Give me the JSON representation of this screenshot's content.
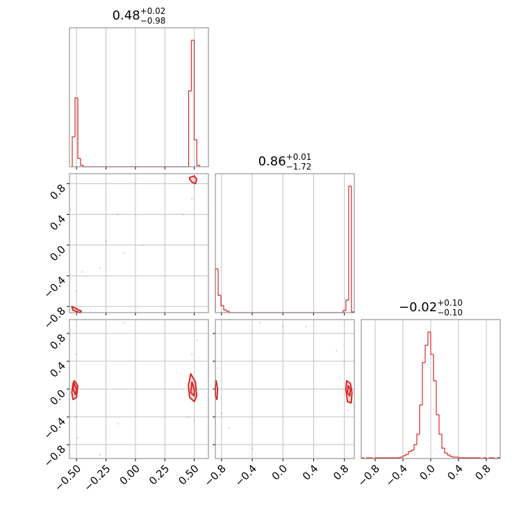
{
  "chart_data": [
    {
      "type": "histogram",
      "title": {
        "text": "0.48",
        "upper": "+0.02",
        "lower": "−0.98"
      },
      "bins": [
        -0.5365,
        -0.513,
        -0.489,
        -0.466,
        -0.442,
        0.452,
        0.475,
        0.499,
        0.522,
        0.546
      ],
      "counts": [
        43,
        99,
        12,
        2,
        0,
        109,
        182,
        39,
        2
      ],
      "xlim": [
        -0.56,
        0.62
      ],
      "ylim": [
        0,
        200
      ],
      "xticks": [
        -0.5,
        -0.25,
        0,
        0.25,
        0.5
      ],
      "xtick_labels": false,
      "grid": true,
      "color": "#d62728"
    },
    {
      "type": "contour",
      "contours": [
        {
          "x": [
            0.46,
            0.5,
            0.52,
            0.51,
            0.48,
            0.46
          ],
          "y": [
            0.88,
            0.9,
            0.86,
            0.8,
            0.82,
            0.86
          ]
        },
        {
          "x": [
            -0.54,
            -0.5,
            -0.46,
            -0.47,
            -0.53
          ],
          "y": [
            -0.8,
            -0.83,
            -0.86,
            -0.88,
            -0.85
          ]
        }
      ],
      "points": {
        "x": [
          -0.25,
          -0.3,
          -0.15,
          -0.1,
          0.05,
          -0.45,
          0.4,
          0.48,
          0.5,
          -0.5
        ],
        "y": [
          0.05,
          -0.3,
          0.4,
          -0.1,
          0.0,
          -0.35,
          0.4,
          0.6,
          0.75,
          -0.6
        ]
      },
      "xlim": [
        -0.56,
        0.62
      ],
      "ylim": [
        -0.88,
        0.93
      ],
      "xticks": [
        -0.5,
        -0.25,
        0,
        0.25,
        0.5
      ],
      "yticks": [
        0.8,
        0.4,
        {
          "value": 0,
          "label": "0.0"
        },
        {
          "value": -0.4,
          "label": "−0.4"
        },
        {
          "value": -0.8,
          "label": "−0.8"
        }
      ],
      "xtick_labels": false,
      "ytick_labels": true,
      "grid": true,
      "color": "#d62728"
    },
    {
      "type": "histogram",
      "title": {
        "text": "0.86",
        "upper": "+0.01",
        "lower": "−1.72"
      },
      "bins": [
        -0.88,
        -0.844,
        -0.808,
        -0.771,
        -0.735,
        -0.699,
        0.785,
        0.821,
        0.857,
        0.893,
        0.93
      ],
      "counts": [
        63,
        25,
        10,
        4,
        2,
        0,
        3,
        18,
        182,
        1
      ],
      "xlim": [
        -0.88,
        0.93
      ],
      "ylim": [
        0,
        200
      ],
      "xticks": [
        -0.8,
        -0.4,
        0,
        0.4,
        0.8
      ],
      "xtick_labels": false,
      "grid": true,
      "color": "#d62728"
    },
    {
      "type": "contour",
      "contours": [
        {
          "x": [
            -0.52,
            -0.49,
            -0.5,
            -0.53,
            -0.54,
            -0.53
          ],
          "y": [
            0.12,
            0.05,
            -0.12,
            -0.15,
            -0.05,
            0.08
          ]
        },
        {
          "x": [
            -0.52,
            -0.5,
            -0.51,
            -0.53
          ],
          "y": [
            0.08,
            0,
            -0.08,
            0
          ]
        },
        {
          "x": [
            0.47,
            0.51,
            0.52,
            0.5,
            0.46,
            0.45
          ],
          "y": [
            0.22,
            0.1,
            -0.1,
            -0.18,
            -0.12,
            0.05
          ]
        },
        {
          "x": [
            0.48,
            0.5,
            0.5,
            0.47
          ],
          "y": [
            0.1,
            0,
            -0.1,
            -0.05
          ]
        }
      ],
      "points": {
        "x": [
          -0.5,
          -0.51,
          -0.49,
          -0.3,
          -0.15,
          0.48,
          0.5,
          0.52,
          -0.1,
          0.45
        ],
        "y": [
          0.5,
          -0.4,
          -0.7,
          -0.95,
          -0.5,
          0.5,
          -0.45,
          0.7,
          0.95,
          -0.4
        ]
      },
      "xlim": [
        -0.56,
        0.62
      ],
      "ylim": [
        -1,
        1
      ],
      "xticks": [
        {
          "value": -0.5,
          "label": "−0.50"
        },
        {
          "value": -0.25,
          "label": "−0.25"
        },
        {
          "value": 0,
          "label": "0.00"
        },
        0.25,
        {
          "value": 0.5,
          "label": "0.50"
        }
      ],
      "yticks": [
        0.8,
        0.4,
        {
          "value": 0,
          "label": "0.0"
        },
        {
          "value": -0.4,
          "label": "−0.4"
        },
        {
          "value": -0.8,
          "label": "−0.8"
        }
      ],
      "xtick_labels": true,
      "ytick_labels": true,
      "grid": true,
      "color": "#d62728"
    },
    {
      "type": "contour",
      "contours": [
        {
          "x": [
            -0.87,
            -0.85,
            -0.86,
            -0.88,
            -0.88
          ],
          "y": [
            0.12,
            0.0,
            -0.15,
            -0.1,
            0.05
          ]
        },
        {
          "x": [
            0.83,
            0.88,
            0.9,
            0.89,
            0.84,
            0.82
          ],
          "y": [
            0.12,
            0.08,
            -0.05,
            -0.2,
            -0.18,
            0.0
          ]
        },
        {
          "x": [
            0.85,
            0.88,
            0.87,
            0.84
          ],
          "y": [
            0.05,
            0,
            -0.1,
            -0.05
          ]
        }
      ],
      "points": {
        "x": [
          -0.85,
          -0.8,
          -0.7,
          -0.3,
          0.0,
          0.3,
          0.7,
          0.8,
          0.85,
          -0.4
        ],
        "y": [
          0.3,
          -0.35,
          -0.55,
          0.95,
          0.9,
          0.9,
          0.55,
          0.4,
          -0.3,
          -0.85
        ]
      },
      "xlim": [
        -0.88,
        0.93
      ],
      "ylim": [
        -1,
        1
      ],
      "xticks": [
        {
          "value": -0.8,
          "label": "−0.8"
        },
        {
          "value": -0.4,
          "label": "−0.4"
        },
        {
          "value": 0,
          "label": "0.0"
        },
        0.4,
        0.8
      ],
      "yticks": [
        0.8,
        0.4,
        0,
        -0.4,
        -0.8
      ],
      "xtick_labels": true,
      "ytick_labels": false,
      "grid": true,
      "color": "#d62728"
    },
    {
      "type": "histogram",
      "title": {
        "text": "−0.02",
        "upper": "+0.10",
        "lower": "−0.10"
      },
      "bins": [
        -1,
        -0.96,
        -0.92,
        -0.88,
        -0.84,
        -0.8,
        -0.76,
        -0.72,
        -0.68,
        -0.64,
        -0.6,
        -0.56,
        -0.52,
        -0.48,
        -0.44,
        -0.4,
        -0.36,
        -0.32,
        -0.28,
        -0.24,
        -0.2,
        -0.16,
        -0.12,
        -0.08,
        -0.04,
        0,
        0.04,
        0.08,
        0.12,
        0.16,
        0.2,
        0.24,
        0.28,
        0.32,
        0.36,
        0.4,
        0.44,
        0.48,
        0.52,
        0.56,
        0.6,
        0.64,
        0.68,
        0.72,
        0.76,
        0.8,
        0.84,
        0.88,
        0.92,
        0.96,
        1
      ],
      "counts": [
        1,
        0,
        1,
        1,
        0,
        1,
        1,
        1,
        1,
        1,
        1,
        1,
        1,
        1,
        2,
        4,
        6,
        10,
        12,
        20,
        35,
        77,
        138,
        163,
        182,
        150,
        112,
        63,
        35,
        15,
        8,
        5,
        3,
        2,
        2,
        1,
        1,
        1,
        1,
        1,
        1,
        1,
        1,
        0,
        1,
        0,
        1,
        1,
        0,
        1
      ],
      "xlim": [
        -1,
        1
      ],
      "ylim": [
        0,
        200
      ],
      "xticks": [
        {
          "value": -0.8,
          "label": "−0.8"
        },
        {
          "value": -0.4,
          "label": "−0.4"
        },
        {
          "value": 0,
          "label": "0.0"
        },
        0.4,
        0.8
      ],
      "xtick_labels": true,
      "grid": true,
      "color": "#d62728"
    }
  ]
}
